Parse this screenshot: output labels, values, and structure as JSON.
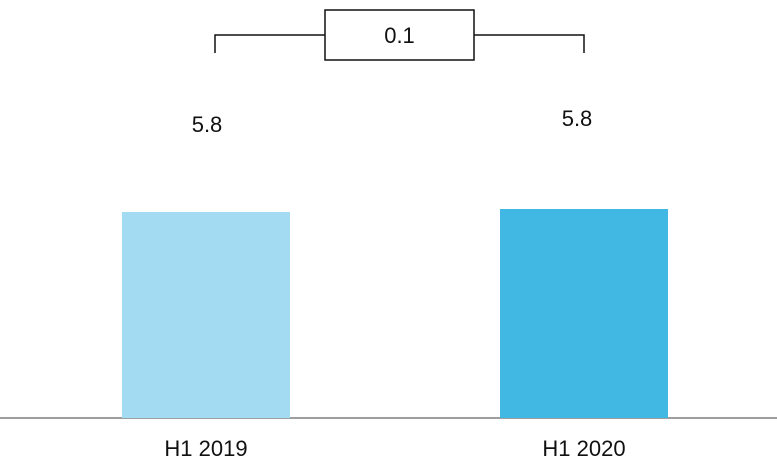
{
  "chart_data": {
    "type": "bar",
    "categories": [
      "H1 2019",
      "H1 2020"
    ],
    "values": [
      5.8,
      5.8
    ],
    "value_labels": [
      "5.8",
      "5.8"
    ],
    "colors": [
      "#a3dcf2",
      "#41b8e4"
    ],
    "difference_label": "0.1",
    "title": "",
    "xlabel": "",
    "ylabel": "",
    "grid": false,
    "legend": "none"
  }
}
